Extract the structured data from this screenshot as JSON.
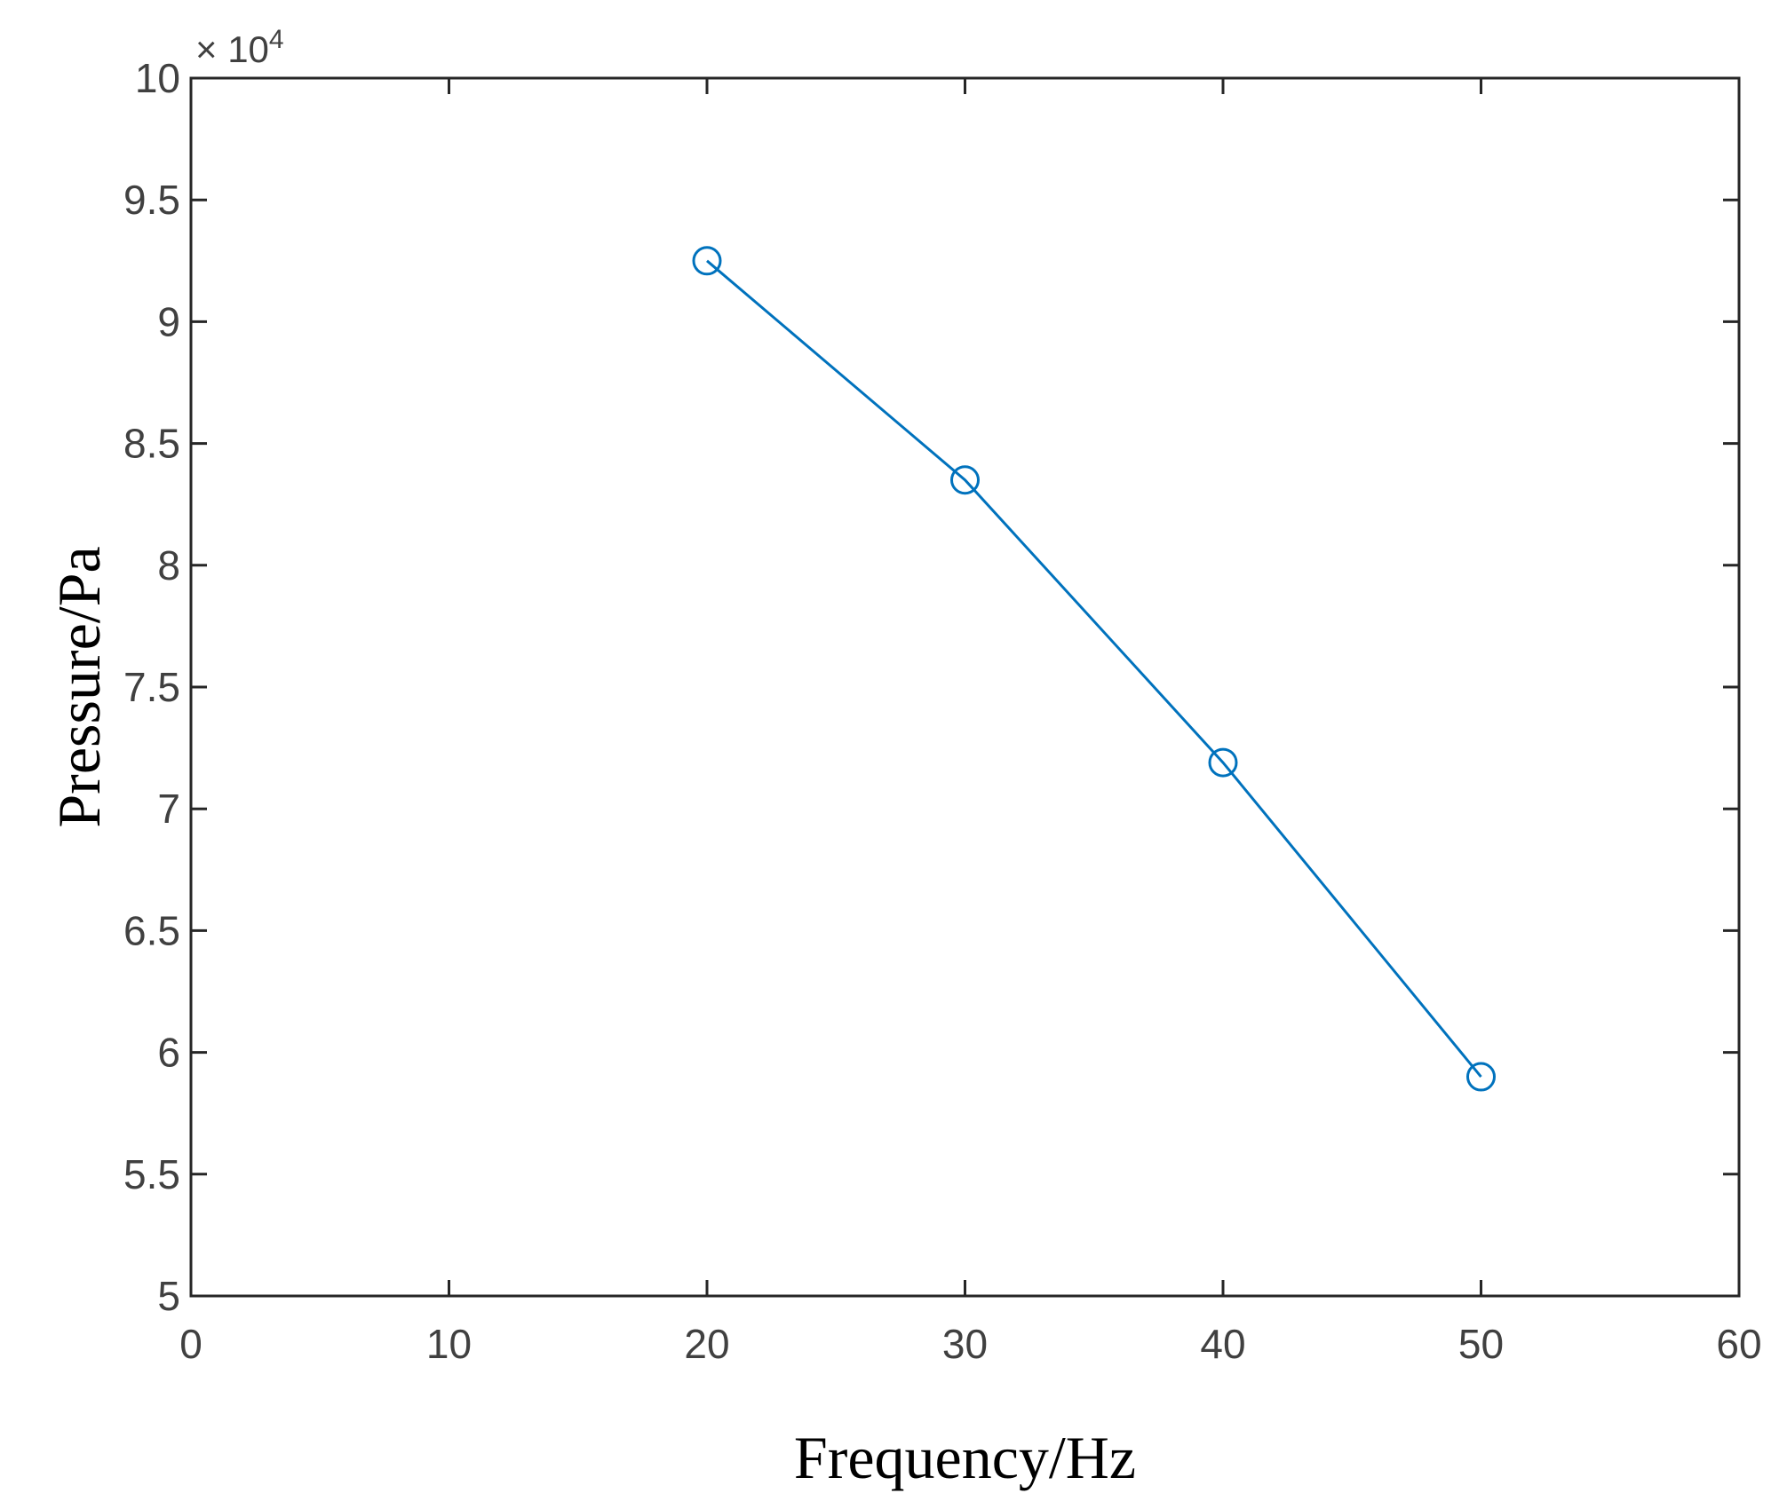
{
  "chart_data": {
    "type": "line",
    "title": "",
    "xlabel": "Frequency/Hz",
    "ylabel": "Pressure/Pa",
    "xlim": [
      0,
      60
    ],
    "ylim": [
      50000,
      100000
    ],
    "x_ticks": [
      "0",
      "10",
      "20",
      "30",
      "40",
      "50",
      "60"
    ],
    "y_ticks": [
      "5",
      "5.5",
      "6",
      "6.5",
      "7",
      "7.5",
      "8",
      "8.5",
      "9",
      "9.5",
      "10"
    ],
    "y_multiplier_prefix": "× 10",
    "y_multiplier_exponent": "4",
    "grid": false,
    "series": [
      {
        "color": "#0072BD",
        "marker": "circle",
        "x": [
          20,
          30,
          40,
          50
        ],
        "y": [
          92500,
          83500,
          71900,
          59000
        ]
      }
    ]
  }
}
